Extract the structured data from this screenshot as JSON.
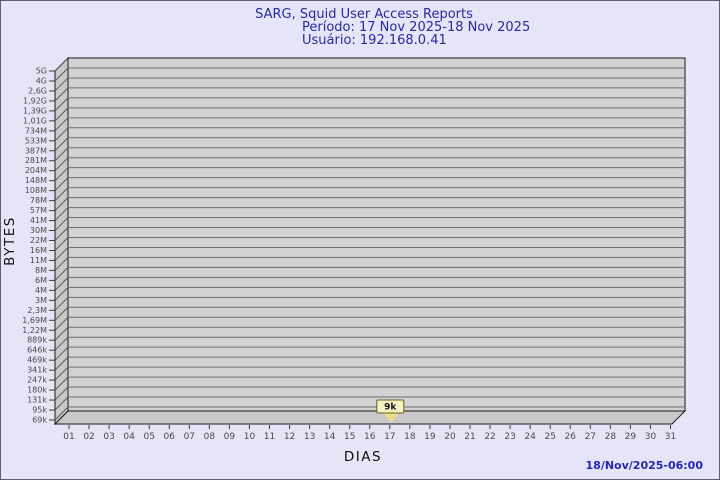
{
  "chart_data": {
    "type": "line",
    "title": "SARG, Squid User Access Reports",
    "period": "Período: 17 Nov 2025-18 Nov 2025",
    "user": "Usuário: 192.168.0.41",
    "xlabel": "DIAS",
    "ylabel": "BYTES",
    "x_tick_labels": [
      "01",
      "02",
      "03",
      "04",
      "05",
      "06",
      "07",
      "08",
      "09",
      "10",
      "11",
      "12",
      "13",
      "14",
      "15",
      "16",
      "17",
      "18",
      "19",
      "20",
      "21",
      "22",
      "23",
      "24",
      "25",
      "26",
      "27",
      "28",
      "29",
      "30",
      "31"
    ],
    "y_tick_labels": [
      "5G",
      "4G",
      "2,6G",
      "1,92G",
      "1,39G",
      "1,01G",
      "734M",
      "533M",
      "387M",
      "281M",
      "204M",
      "148M",
      "108M",
      "78M",
      "57M",
      "41M",
      "30M",
      "22M",
      "16M",
      "11M",
      "8M",
      "6M",
      "4M",
      "3M",
      "2,3M",
      "1,69M",
      "1,22M",
      "889k",
      "646k",
      "469k",
      "341k",
      "247k",
      "180k",
      "131k",
      "95k",
      "69k"
    ],
    "grid": true,
    "legend": "none",
    "annotations": [
      {
        "x": "17",
        "label": "9k"
      }
    ]
  },
  "footer": {
    "timestamp": "18/Nov/2025-06:00"
  },
  "colors": {
    "background": "#e5e5f7",
    "page_border": "#60606c",
    "title_text": "#2a2a9e",
    "timestamp_text": "#2626b4",
    "plot_fill": "#d3d3d3",
    "plot_side_fill": "#c9c9c9",
    "grid_line": "#6e6e6e",
    "annotation_fill": "#f5f0c5",
    "annotation_border": "#6b5e10",
    "annotation_pointer": "#eadc8e"
  }
}
